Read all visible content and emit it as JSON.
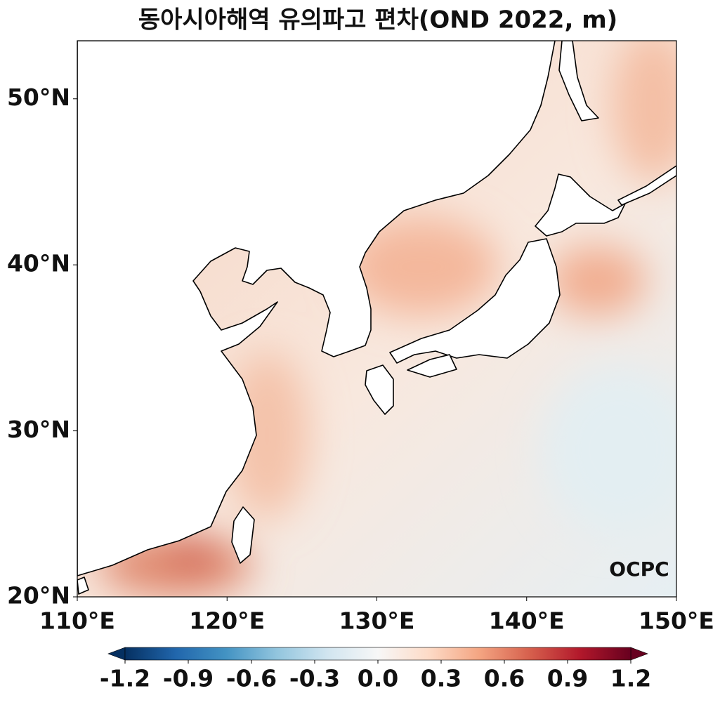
{
  "chart_data": {
    "type": "map",
    "title": "동아시아해역 유의파고 편차(OND 2022, m)",
    "xlim": [
      110,
      150
    ],
    "ylim": [
      20,
      53.5
    ],
    "xticks": [
      {
        "value": 110,
        "label": "110°E"
      },
      {
        "value": 120,
        "label": "120°E"
      },
      {
        "value": 130,
        "label": "130°E"
      },
      {
        "value": 140,
        "label": "140°E"
      },
      {
        "value": 150,
        "label": "150°E"
      }
    ],
    "yticks": [
      {
        "value": 20,
        "label": "20°N"
      },
      {
        "value": 30,
        "label": "30°N"
      },
      {
        "value": 40,
        "label": "40°N"
      },
      {
        "value": 50,
        "label": "50°N"
      }
    ],
    "colorbar": {
      "lim": [
        -1.2,
        1.2
      ],
      "ticks": [
        -1.2,
        -0.9,
        -0.6,
        -0.3,
        {
          "value": 0,
          "label": "0.0"
        },
        0.3,
        0.6,
        0.9,
        1.2
      ],
      "colors": [
        "#053061",
        "#2166ac",
        "#4393c3",
        "#92c5de",
        "#d1e5f0",
        "#f7f7f7",
        "#fddbc7",
        "#f4a582",
        "#d6604d",
        "#b2182b",
        "#67001f"
      ]
    },
    "logo": "OCPC"
  }
}
